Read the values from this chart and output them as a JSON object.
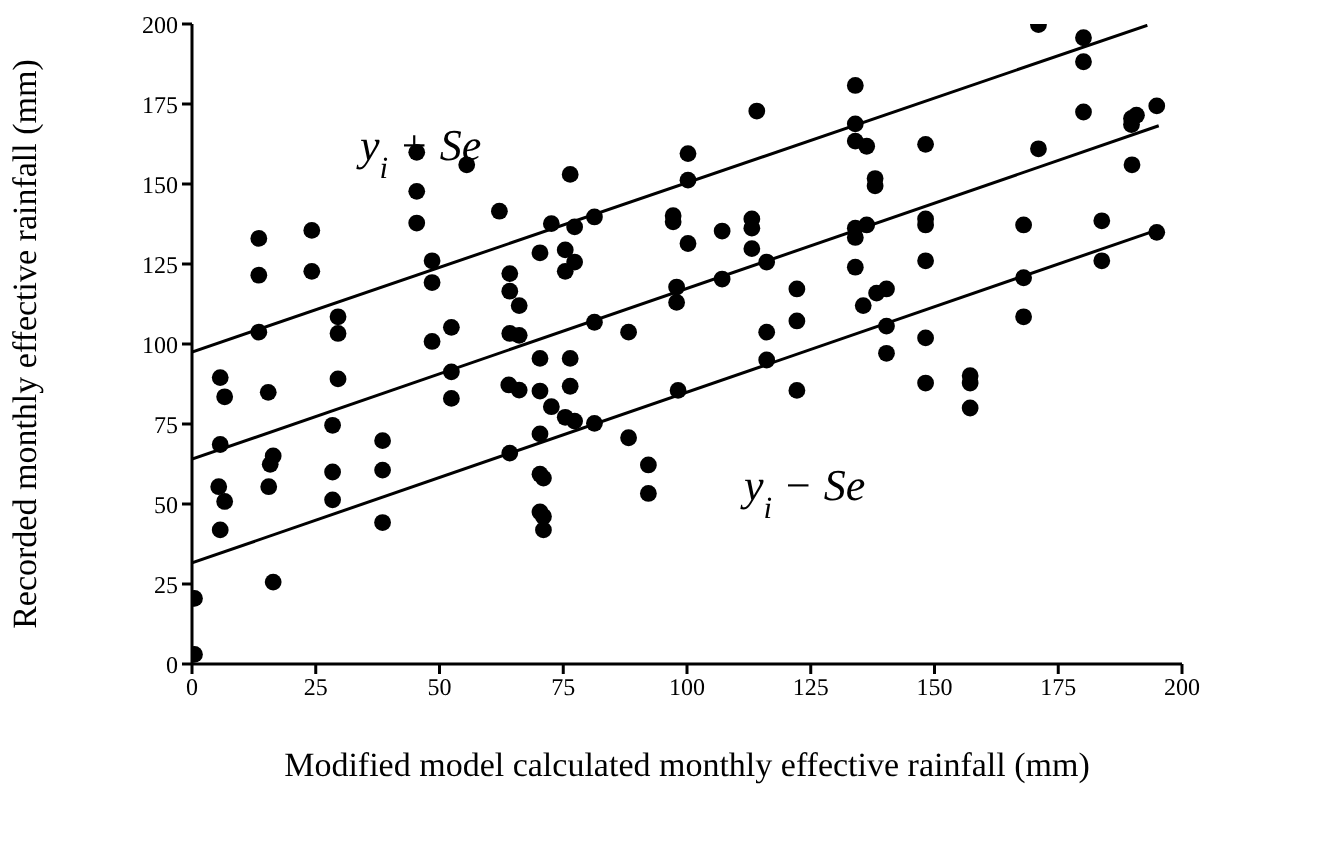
{
  "chart_data": {
    "type": "scatter",
    "xlabel": "Modified model calculated monthly effective rainfall (mm)",
    "ylabel": "Recorded  monthly effective rainfall (mm)",
    "xlim": [
      0,
      200
    ],
    "ylim": [
      0,
      200
    ],
    "xticks": [
      0,
      25,
      50,
      75,
      100,
      125,
      150,
      175,
      200
    ],
    "yticks": [
      0,
      25,
      50,
      75,
      100,
      125,
      150,
      175,
      200
    ],
    "grid": false,
    "legend": false,
    "marker": "circle",
    "annotations": [
      "y$_{i}$ + Se",
      "y$_{i}$ − Se"
    ],
    "series": [
      {
        "color": "#000000",
        "x": [
          0.5,
          0.5,
          5.7,
          6.6,
          5.7,
          5.4,
          6.6,
          5.7,
          13.5,
          13.5,
          13.5,
          15.4,
          15.8,
          16.4,
          15.5,
          16.4,
          24.2,
          24.2,
          29.5,
          29.5,
          29.5,
          28.4,
          28.4,
          28.4,
          38.5,
          38.5,
          38.5,
          45.4,
          45.4,
          45.4,
          55.5,
          48.5,
          48.5,
          48.5,
          52.4,
          52.4,
          52.4,
          62.1,
          64.2,
          64.2,
          66.1,
          64.2,
          66.1,
          64,
          66.1,
          64.2,
          70.3,
          72.6,
          76.4,
          77.3,
          81.3,
          75.4,
          75.4,
          77.3,
          70.3,
          76.4,
          81.3,
          88.2,
          70.3,
          76.4,
          72.6,
          75.4,
          77.3,
          81.3,
          70.3,
          70.3,
          71,
          70.3,
          71,
          71,
          88.2,
          92.2,
          92.2,
          97.2,
          97.2,
          100.2,
          100.2,
          100.2,
          97.9,
          97.9,
          98.2,
          107.1,
          107.1,
          113.1,
          113.1,
          113.1,
          114.1,
          116.1,
          116.1,
          116.1,
          122.2,
          122.2,
          122.2,
          134,
          134,
          134,
          136.3,
          134,
          134,
          134,
          135.6,
          138,
          138,
          136.3,
          138.3,
          140.3,
          140.3,
          140.3,
          171,
          180.1,
          180.1,
          180.1,
          190.8,
          189.8,
          189.8,
          194.9,
          171,
          189.9,
          148.2,
          148.2,
          148.2,
          148.2,
          148.2,
          148.2,
          157.2,
          157.2,
          157.2,
          168,
          168,
          168,
          183.8,
          183.8,
          194.9
        ],
        "values": [
          20.5,
          3,
          89.5,
          83.5,
          68.6,
          55.4,
          50.8,
          41.9,
          133,
          121.5,
          103.7,
          84.9,
          62.4,
          65,
          55.4,
          25.6,
          135.5,
          122.7,
          108.5,
          103.3,
          89.1,
          74.6,
          60,
          51.3,
          69.8,
          60.6,
          44.2,
          159.9,
          147.7,
          137.8,
          156,
          126,
          119.2,
          100.8,
          105.2,
          91.3,
          83,
          141.5,
          122,
          116.5,
          112,
          103.3,
          102.7,
          87.2,
          85.6,
          65.9,
          128.5,
          137.6,
          153,
          136.6,
          139.7,
          129.4,
          122.7,
          125.6,
          95.5,
          95.5,
          106.8,
          103.7,
          85.3,
          86.8,
          80.4,
          77.1,
          75.9,
          75.2,
          71.9,
          59.3,
          58.1,
          47.5,
          46.1,
          41.9,
          70.7,
          62.2,
          53.3,
          140.1,
          138.2,
          159.5,
          151.2,
          131.4,
          117.8,
          113,
          85.5,
          135.3,
          120.3,
          139.1,
          136.2,
          129.8,
          172.8,
          125.6,
          103.7,
          95,
          117.2,
          107.2,
          85.5,
          180.8,
          168.8,
          163.4,
          161.8,
          136.2,
          133.3,
          124,
          112,
          151.7,
          149.4,
          137.2,
          115.9,
          117.2,
          105.6,
          97.1,
          199.8,
          195.7,
          188.2,
          172.5,
          171.5,
          170.5,
          168.6,
          174.4,
          161,
          156,
          162.4,
          139.1,
          137.2,
          126,
          101.9,
          87.8,
          90.1,
          87.8,
          80,
          137.2,
          120.7,
          108.5,
          138.5,
          126,
          134.9
        ]
      },
      {
        "type": "line",
        "color": "#000000",
        "marker": "none",
        "line_style": "solid",
        "x": [
          0,
          193
        ],
        "values": [
          97.5,
          199.6
        ]
      },
      {
        "type": "line",
        "color": "#000000",
        "marker": "none",
        "line_style": "solid",
        "x": [
          0,
          195.3
        ],
        "values": [
          64,
          168.2
        ]
      },
      {
        "type": "line",
        "color": "#000000",
        "marker": "none",
        "line_style": "solid",
        "x": [
          0,
          194.9
        ],
        "values": [
          31.6,
          135.6
        ]
      }
    ]
  }
}
